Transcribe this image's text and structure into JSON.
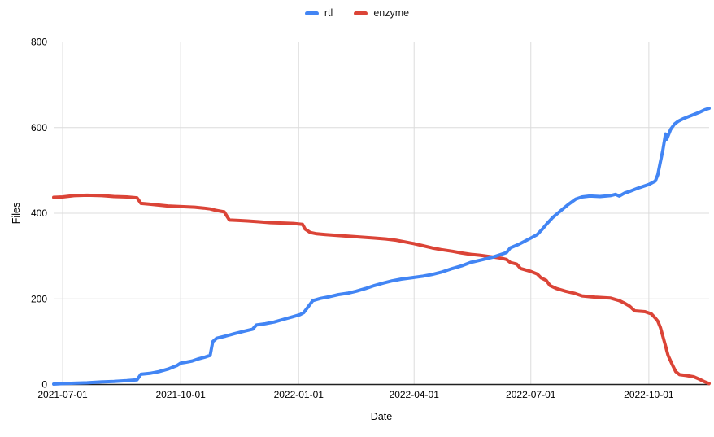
{
  "chart_data": {
    "type": "line",
    "title": "",
    "xlabel": "Date",
    "ylabel": "Files",
    "ylim": [
      0,
      800
    ],
    "yticks": [
      0,
      200,
      400,
      600,
      800
    ],
    "xticks": [
      "2021-07-01",
      "2021-10-01",
      "2022-01-01",
      "2022-04-01",
      "2022-07-01",
      "2022-10-01"
    ],
    "x_range": [
      "2021-06-24",
      "2022-11-17"
    ],
    "grid": true,
    "legend_position": "top-center",
    "background": "#ffffff",
    "gridline_color": "#dcdcdc",
    "axis_line_color": "#212121",
    "series": [
      {
        "name": "enzyme",
        "color": "#DB4437",
        "points": [
          [
            "2021-06-24",
            437
          ],
          [
            "2021-07-01",
            438
          ],
          [
            "2021-07-10",
            441
          ],
          [
            "2021-07-20",
            442
          ],
          [
            "2021-08-01",
            441
          ],
          [
            "2021-08-10",
            439
          ],
          [
            "2021-08-20",
            438
          ],
          [
            "2021-08-28",
            436
          ],
          [
            "2021-08-31",
            423
          ],
          [
            "2021-09-07",
            421
          ],
          [
            "2021-09-14",
            419
          ],
          [
            "2021-09-21",
            417
          ],
          [
            "2021-09-28",
            416
          ],
          [
            "2021-10-05",
            415
          ],
          [
            "2021-10-12",
            414
          ],
          [
            "2021-10-19",
            412
          ],
          [
            "2021-10-24",
            410
          ],
          [
            "2021-10-28",
            407
          ],
          [
            "2021-11-04",
            403
          ],
          [
            "2021-11-08",
            384
          ],
          [
            "2021-11-15",
            383
          ],
          [
            "2021-11-22",
            382
          ],
          [
            "2021-12-01",
            380
          ],
          [
            "2021-12-10",
            378
          ],
          [
            "2021-12-20",
            377
          ],
          [
            "2021-12-28",
            376
          ],
          [
            "2022-01-04",
            374
          ],
          [
            "2022-01-06",
            363
          ],
          [
            "2022-01-10",
            355
          ],
          [
            "2022-01-15",
            352
          ],
          [
            "2022-01-22",
            350
          ],
          [
            "2022-02-01",
            348
          ],
          [
            "2022-02-10",
            346
          ],
          [
            "2022-02-20",
            344
          ],
          [
            "2022-03-01",
            342
          ],
          [
            "2022-03-10",
            340
          ],
          [
            "2022-03-18",
            337
          ],
          [
            "2022-03-25",
            333
          ],
          [
            "2022-04-01",
            329
          ],
          [
            "2022-04-08",
            324
          ],
          [
            "2022-04-15",
            319
          ],
          [
            "2022-04-22",
            315
          ],
          [
            "2022-05-01",
            311
          ],
          [
            "2022-05-08",
            307
          ],
          [
            "2022-05-15",
            304
          ],
          [
            "2022-05-22",
            302
          ],
          [
            "2022-06-01",
            298
          ],
          [
            "2022-06-08",
            295
          ],
          [
            "2022-06-12",
            292
          ],
          [
            "2022-06-15",
            285
          ],
          [
            "2022-06-20",
            281
          ],
          [
            "2022-06-23",
            271
          ],
          [
            "2022-07-01",
            264
          ],
          [
            "2022-07-06",
            258
          ],
          [
            "2022-07-09",
            249
          ],
          [
            "2022-07-13",
            243
          ],
          [
            "2022-07-16",
            231
          ],
          [
            "2022-07-21",
            224
          ],
          [
            "2022-07-28",
            218
          ],
          [
            "2022-08-04",
            213
          ],
          [
            "2022-08-10",
            207
          ],
          [
            "2022-08-20",
            204
          ],
          [
            "2022-09-01",
            202
          ],
          [
            "2022-09-08",
            196
          ],
          [
            "2022-09-12",
            190
          ],
          [
            "2022-09-16",
            183
          ],
          [
            "2022-09-20",
            172
          ],
          [
            "2022-09-28",
            170
          ],
          [
            "2022-10-03",
            165
          ],
          [
            "2022-10-06",
            155
          ],
          [
            "2022-10-08",
            148
          ],
          [
            "2022-10-10",
            133
          ],
          [
            "2022-10-12",
            112
          ],
          [
            "2022-10-14",
            90
          ],
          [
            "2022-10-16",
            68
          ],
          [
            "2022-10-19",
            48
          ],
          [
            "2022-10-22",
            30
          ],
          [
            "2022-10-25",
            23
          ],
          [
            "2022-10-30",
            21
          ],
          [
            "2022-11-05",
            18
          ],
          [
            "2022-11-09",
            13
          ],
          [
            "2022-11-13",
            7
          ],
          [
            "2022-11-17",
            2
          ]
        ]
      },
      {
        "name": "rtl",
        "color": "#4285F4",
        "points": [
          [
            "2021-06-24",
            1
          ],
          [
            "2021-07-01",
            2
          ],
          [
            "2021-07-10",
            3
          ],
          [
            "2021-07-20",
            4
          ],
          [
            "2021-08-01",
            6
          ],
          [
            "2021-08-10",
            7
          ],
          [
            "2021-08-20",
            9
          ],
          [
            "2021-08-28",
            11
          ],
          [
            "2021-08-31",
            24
          ],
          [
            "2021-09-07",
            26
          ],
          [
            "2021-09-14",
            30
          ],
          [
            "2021-09-21",
            36
          ],
          [
            "2021-09-28",
            44
          ],
          [
            "2021-10-01",
            50
          ],
          [
            "2021-10-05",
            52
          ],
          [
            "2021-10-10",
            55
          ],
          [
            "2021-10-15",
            60
          ],
          [
            "2021-10-20",
            64
          ],
          [
            "2021-10-24",
            68
          ],
          [
            "2021-10-26",
            100
          ],
          [
            "2021-10-29",
            108
          ],
          [
            "2021-11-05",
            113
          ],
          [
            "2021-11-12",
            119
          ],
          [
            "2021-11-19",
            124
          ],
          [
            "2021-11-26",
            129
          ],
          [
            "2021-11-29",
            139
          ],
          [
            "2021-12-06",
            142
          ],
          [
            "2021-12-13",
            146
          ],
          [
            "2021-12-20",
            152
          ],
          [
            "2021-12-27",
            158
          ],
          [
            "2022-01-02",
            163
          ],
          [
            "2022-01-05",
            168
          ],
          [
            "2022-01-08",
            180
          ],
          [
            "2022-01-12",
            196
          ],
          [
            "2022-01-18",
            201
          ],
          [
            "2022-01-25",
            205
          ],
          [
            "2022-02-01",
            210
          ],
          [
            "2022-02-08",
            213
          ],
          [
            "2022-02-15",
            218
          ],
          [
            "2022-02-22",
            224
          ],
          [
            "2022-03-01",
            231
          ],
          [
            "2022-03-08",
            237
          ],
          [
            "2022-03-15",
            242
          ],
          [
            "2022-03-22",
            246
          ],
          [
            "2022-04-01",
            250
          ],
          [
            "2022-04-08",
            253
          ],
          [
            "2022-04-15",
            257
          ],
          [
            "2022-04-22",
            262
          ],
          [
            "2022-05-01",
            271
          ],
          [
            "2022-05-08",
            277
          ],
          [
            "2022-05-15",
            285
          ],
          [
            "2022-05-22",
            290
          ],
          [
            "2022-06-01",
            297
          ],
          [
            "2022-06-08",
            304
          ],
          [
            "2022-06-12",
            308
          ],
          [
            "2022-06-15",
            319
          ],
          [
            "2022-06-22",
            328
          ],
          [
            "2022-07-01",
            342
          ],
          [
            "2022-07-06",
            350
          ],
          [
            "2022-07-10",
            363
          ],
          [
            "2022-07-14",
            377
          ],
          [
            "2022-07-18",
            390
          ],
          [
            "2022-07-24",
            405
          ],
          [
            "2022-07-30",
            420
          ],
          [
            "2022-08-05",
            433
          ],
          [
            "2022-08-10",
            438
          ],
          [
            "2022-08-16",
            440
          ],
          [
            "2022-08-24",
            439
          ],
          [
            "2022-09-01",
            441
          ],
          [
            "2022-09-05",
            444
          ],
          [
            "2022-09-08",
            440
          ],
          [
            "2022-09-12",
            447
          ],
          [
            "2022-09-16",
            451
          ],
          [
            "2022-09-22",
            458
          ],
          [
            "2022-10-01",
            467
          ],
          [
            "2022-10-06",
            475
          ],
          [
            "2022-10-08",
            490
          ],
          [
            "2022-10-10",
            520
          ],
          [
            "2022-10-12",
            548
          ],
          [
            "2022-10-14",
            585
          ],
          [
            "2022-10-15",
            573
          ],
          [
            "2022-10-18",
            596
          ],
          [
            "2022-10-21",
            608
          ],
          [
            "2022-10-24",
            615
          ],
          [
            "2022-10-28",
            621
          ],
          [
            "2022-11-03",
            628
          ],
          [
            "2022-11-09",
            635
          ],
          [
            "2022-11-14",
            642
          ],
          [
            "2022-11-17",
            645
          ]
        ]
      }
    ],
    "legend_order": [
      "rtl",
      "enzyme"
    ]
  }
}
